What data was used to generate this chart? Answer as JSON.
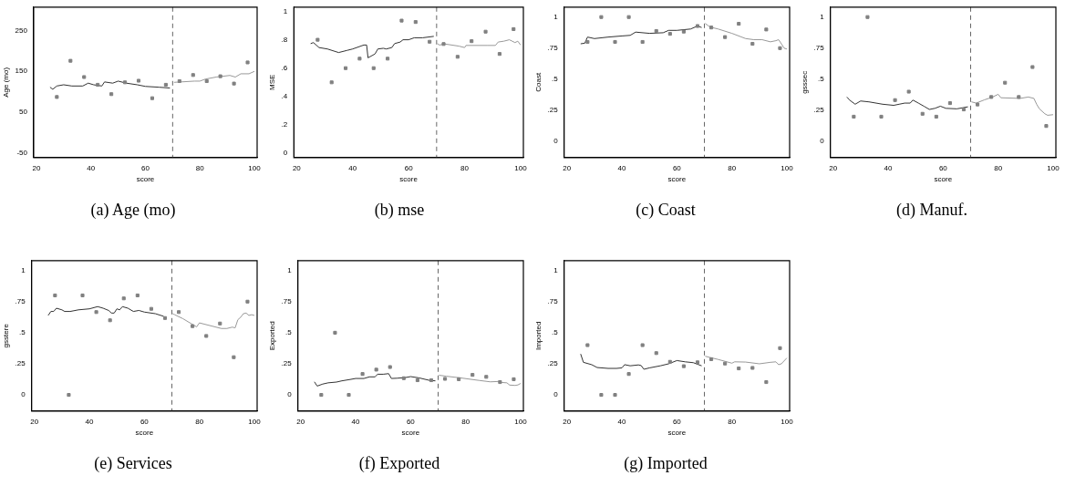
{
  "chart_data": [
    {
      "type": "scatter",
      "title": "(a) Age (mo)",
      "xlabel": "score",
      "ylabel": "Age (mo)",
      "xlim": [
        19,
        101
      ],
      "xticks": [
        20,
        40,
        60,
        80,
        100
      ],
      "ylim": [
        -62,
        308
      ],
      "yticks": [
        -50,
        50,
        150,
        250
      ],
      "marker": "square",
      "grid": false,
      "legend": false,
      "ref_lines": [
        {
          "axis": "x",
          "value": 70,
          "color": "#666666",
          "line_style": "dashed"
        }
      ],
      "series": [
        {
          "type": "scatter",
          "color": "#808080",
          "x": [
            27.5,
            32.5,
            37.5,
            42.5,
            47.5,
            52.5,
            57.5,
            62.5,
            67.5,
            72.5,
            77.5,
            82.5,
            87.5,
            92.5,
            97.5
          ],
          "values": [
            87,
            176,
            136,
            117,
            94,
            123,
            127,
            84,
            117,
            126,
            141,
            126,
            138,
            120,
            172
          ]
        },
        {
          "type": "line",
          "color": "#333333",
          "marker": "none",
          "line_style": "solid",
          "x": [
            25,
            26,
            27.5,
            30,
            33,
            37,
            39,
            41,
            44,
            45,
            48,
            50,
            53,
            57,
            60,
            65,
            69
          ],
          "values": [
            111,
            106,
            114,
            117,
            114,
            114,
            121,
            117,
            114,
            124,
            121,
            126,
            121,
            117,
            113,
            111,
            109
          ]
        },
        {
          "type": "line",
          "color": "#999999",
          "marker": "none",
          "line_style": "solid",
          "x": [
            70.5,
            73,
            78,
            80,
            82,
            86,
            91,
            93,
            95,
            98,
            100
          ],
          "values": [
            123,
            124,
            126,
            126,
            131,
            136,
            140,
            136,
            144,
            144,
            150
          ]
        }
      ]
    },
    {
      "type": "scatter",
      "title": "(b) mse",
      "xlabel": "score",
      "ylabel": "MSE",
      "xlim": [
        19,
        101
      ],
      "xticks": [
        20,
        40,
        60,
        80,
        100
      ],
      "ylim": [
        -0.03,
        1.03
      ],
      "yticks": [
        0,
        {
          "value": 0.2,
          "label": ".2"
        },
        {
          "value": 0.4,
          "label": ".4"
        },
        {
          "value": 0.6,
          "label": ".6"
        },
        {
          "value": 0.8,
          "label": ".8"
        },
        1
      ],
      "marker": "square",
      "grid": false,
      "legend": false,
      "ref_lines": [
        {
          "axis": "x",
          "value": 70,
          "color": "#666666",
          "line_style": "dashed"
        }
      ],
      "series": [
        {
          "type": "scatter",
          "color": "#808080",
          "x": [
            27.5,
            32.5,
            37.5,
            42.5,
            47.5,
            52.5,
            57.5,
            62.5,
            67.5,
            72.5,
            77.5,
            82.5,
            87.5,
            92.5,
            97.5
          ],
          "values": [
            0.8,
            0.5,
            0.6,
            0.667,
            0.6,
            0.667,
            0.935,
            0.925,
            0.786,
            0.77,
            0.68,
            0.79,
            0.857,
            0.7,
            0.875
          ]
        },
        {
          "type": "line",
          "color": "#333333",
          "marker": "none",
          "line_style": "solid",
          "x": [
            25,
            26,
            28,
            31,
            35,
            38,
            40,
            44,
            45,
            45.5,
            48,
            49,
            51,
            52,
            54,
            55,
            57,
            58,
            60,
            62,
            65,
            69
          ],
          "values": [
            0.773,
            0.78,
            0.745,
            0.735,
            0.71,
            0.725,
            0.735,
            0.763,
            0.763,
            0.673,
            0.7,
            0.735,
            0.74,
            0.735,
            0.745,
            0.773,
            0.784,
            0.8,
            0.8,
            0.814,
            0.814,
            0.824
          ]
        },
        {
          "type": "line",
          "color": "#999999",
          "marker": "none",
          "line_style": "solid",
          "x": [
            70.3,
            71,
            73,
            78,
            80,
            80.5,
            88,
            91,
            92,
            94,
            96,
            97,
            98,
            99,
            100
          ],
          "values": [
            0.773,
            0.763,
            0.77,
            0.755,
            0.745,
            0.76,
            0.76,
            0.76,
            0.784,
            0.79,
            0.8,
            0.79,
            0.78,
            0.79,
            0.763
          ]
        }
      ]
    },
    {
      "type": "scatter",
      "title": "(c) Coast",
      "xlabel": "score",
      "ylabel": "Coast",
      "xlim": [
        19,
        101
      ],
      "xticks": [
        20,
        40,
        60,
        80,
        100
      ],
      "ylim": [
        -0.13,
        1.08
      ],
      "yticks": [
        0,
        {
          "value": 0.25,
          "label": ".25"
        },
        {
          "value": 0.5,
          "label": ".5"
        },
        {
          "value": 0.75,
          "label": ".75"
        },
        1
      ],
      "marker": "square",
      "grid": false,
      "legend": false,
      "ref_lines": [
        {
          "axis": "x",
          "value": 70,
          "color": "#666666",
          "line_style": "dashed"
        }
      ],
      "series": [
        {
          "type": "scatter",
          "color": "#808080",
          "x": [
            27.5,
            32.5,
            37.5,
            42.5,
            47.5,
            52.5,
            57.5,
            62.5,
            67.5,
            72.5,
            77.5,
            82.5,
            87.5,
            92.5,
            97.5
          ],
          "values": [
            0.8,
            1,
            0.8,
            1,
            0.8,
            0.888,
            0.865,
            0.883,
            0.928,
            0.916,
            0.839,
            0.946,
            0.785,
            0.9,
            0.75
          ]
        },
        {
          "type": "line",
          "color": "#333333",
          "marker": "none",
          "line_style": "solid",
          "x": [
            25,
            26.5,
            27.5,
            30,
            35,
            40,
            43,
            45,
            50,
            55,
            57,
            60,
            65,
            67.5,
            69
          ],
          "values": [
            0.785,
            0.79,
            0.839,
            0.827,
            0.839,
            0.848,
            0.853,
            0.879,
            0.869,
            0.874,
            0.893,
            0.893,
            0.904,
            0.928,
            0.916
          ]
        },
        {
          "type": "line",
          "color": "#999999",
          "marker": "none",
          "line_style": "solid",
          "x": [
            70.3,
            72,
            75,
            80,
            85,
            88,
            91,
            94,
            96,
            97,
            98,
            99,
            100
          ],
          "values": [
            0.949,
            0.92,
            0.904,
            0.869,
            0.827,
            0.818,
            0.818,
            0.801,
            0.81,
            0.818,
            0.785,
            0.75,
            0.743
          ]
        }
      ]
    },
    {
      "type": "scatter",
      "title": "(d) Manuf.",
      "xlabel": "score",
      "ylabel": "gsssec",
      "xlim": [
        19,
        101
      ],
      "xticks": [
        20,
        40,
        60,
        80,
        100
      ],
      "ylim": [
        -0.13,
        1.08
      ],
      "yticks": [
        0,
        {
          "value": 0.25,
          "label": ".25"
        },
        {
          "value": 0.5,
          "label": ".5"
        },
        {
          "value": 0.75,
          "label": ".75"
        },
        1
      ],
      "marker": "square",
      "grid": false,
      "legend": false,
      "ref_lines": [
        {
          "axis": "x",
          "value": 70,
          "color": "#666666",
          "line_style": "dashed"
        }
      ],
      "series": [
        {
          "type": "scatter",
          "color": "#808080",
          "x": [
            27.5,
            32.5,
            37.5,
            42.5,
            47.5,
            52.5,
            57.5,
            62.5,
            67.5,
            72.5,
            77.5,
            82.5,
            87.5,
            92.5,
            97.5
          ],
          "values": [
            0.199,
            1,
            0.199,
            0.332,
            0.4,
            0.222,
            0.199,
            0.308,
            0.257,
            0.297,
            0.357,
            0.472,
            0.357,
            0.598,
            0.124
          ]
        },
        {
          "type": "line",
          "color": "#333333",
          "marker": "none",
          "line_style": "solid",
          "x": [
            25,
            26,
            28,
            30,
            33,
            38,
            42,
            44,
            46,
            48,
            49,
            51,
            53,
            55,
            57,
            59,
            61,
            65,
            69
          ],
          "values": [
            0.357,
            0.332,
            0.299,
            0.325,
            0.318,
            0.299,
            0.29,
            0.299,
            0.308,
            0.308,
            0.332,
            0.308,
            0.283,
            0.257,
            0.266,
            0.283,
            0.266,
            0.262,
            0.278
          ]
        },
        {
          "type": "line",
          "color": "#999999",
          "marker": "none",
          "line_style": "solid",
          "x": [
            70.3,
            72,
            75,
            78,
            80,
            81,
            88,
            91,
            93,
            94,
            95,
            97,
            98,
            100
          ],
          "values": [
            0.318,
            0.308,
            0.334,
            0.357,
            0.379,
            0.351,
            0.346,
            0.357,
            0.346,
            0.299,
            0.262,
            0.222,
            0.21,
            0.215
          ]
        }
      ]
    },
    {
      "type": "scatter",
      "title": "(e) Services",
      "xlabel": "score",
      "ylabel": "gsstere",
      "xlim": [
        19,
        101
      ],
      "xticks": [
        20,
        40,
        60,
        80,
        100
      ],
      "ylim": [
        -0.13,
        1.08
      ],
      "yticks": [
        0,
        {
          "value": 0.25,
          "label": ".25"
        },
        {
          "value": 0.5,
          "label": ".5"
        },
        {
          "value": 0.75,
          "label": ".75"
        },
        1
      ],
      "marker": "square",
      "grid": false,
      "legend": false,
      "ref_lines": [
        {
          "axis": "x",
          "value": 70,
          "color": "#666666",
          "line_style": "dashed"
        }
      ],
      "series": [
        {
          "type": "scatter",
          "color": "#808080",
          "x": [
            27.5,
            32.5,
            37.5,
            42.5,
            47.5,
            52.5,
            57.5,
            62.5,
            67.5,
            72.5,
            77.5,
            82.5,
            87.5,
            92.5,
            97.5
          ],
          "values": [
            0.8,
            0,
            0.8,
            0.666,
            0.6,
            0.776,
            0.8,
            0.692,
            0.618,
            0.666,
            0.553,
            0.474,
            0.574,
            0.303,
            0.75
          ]
        },
        {
          "type": "line",
          "color": "#333333",
          "marker": "none",
          "line_style": "solid",
          "x": [
            25,
            26,
            27,
            28,
            30,
            31,
            33,
            36,
            40,
            43,
            45,
            47,
            48,
            49,
            50,
            51,
            52,
            54,
            56,
            58,
            60,
            64,
            67
          ],
          "values": [
            0.639,
            0.671,
            0.671,
            0.697,
            0.684,
            0.671,
            0.671,
            0.684,
            0.692,
            0.71,
            0.697,
            0.679,
            0.658,
            0.658,
            0.692,
            0.684,
            0.71,
            0.697,
            0.671,
            0.679,
            0.666,
            0.653,
            0.632
          ]
        },
        {
          "type": "line",
          "color": "#999999",
          "marker": "none",
          "line_style": "solid",
          "x": [
            70.3,
            71,
            74,
            79,
            80,
            88,
            90,
            92,
            93,
            94,
            95,
            96,
            97,
            98,
            99,
            100
          ],
          "values": [
            0.653,
            0.645,
            0.613,
            0.547,
            0.579,
            0.534,
            0.534,
            0.545,
            0.539,
            0.605,
            0.624,
            0.653,
            0.658,
            0.639,
            0.645,
            0.639
          ]
        }
      ]
    },
    {
      "type": "scatter",
      "title": "(f) Exported",
      "xlabel": "score",
      "ylabel": "Exported",
      "xlim": [
        19,
        101
      ],
      "xticks": [
        20,
        40,
        60,
        80,
        100
      ],
      "ylim": [
        -0.13,
        1.08
      ],
      "yticks": [
        0,
        {
          "value": 0.25,
          "label": ".25"
        },
        {
          "value": 0.5,
          "label": ".5"
        },
        {
          "value": 0.75,
          "label": ".75"
        },
        1
      ],
      "marker": "square",
      "grid": false,
      "legend": false,
      "ref_lines": [
        {
          "axis": "x",
          "value": 70,
          "color": "#666666",
          "line_style": "dashed"
        }
      ],
      "series": [
        {
          "type": "scatter",
          "color": "#808080",
          "x": [
            27.5,
            32.5,
            37.5,
            42.5,
            47.5,
            52.5,
            57.5,
            62.5,
            67.5,
            72.5,
            77.5,
            82.5,
            87.5,
            92.5,
            97.5
          ],
          "values": [
            0,
            0.5,
            0,
            0.168,
            0.203,
            0.224,
            0.134,
            0.118,
            0.118,
            0.129,
            0.126,
            0.161,
            0.145,
            0.103,
            0.126
          ]
        },
        {
          "type": "line",
          "color": "#333333",
          "marker": "none",
          "line_style": "solid",
          "x": [
            25,
            26,
            28,
            30,
            33,
            35,
            38,
            40,
            43,
            45,
            47,
            48,
            50,
            52,
            53,
            55,
            58,
            60,
            63,
            67,
            69
          ],
          "values": [
            0.105,
            0.071,
            0.087,
            0.097,
            0.103,
            0.113,
            0.124,
            0.132,
            0.132,
            0.145,
            0.145,
            0.166,
            0.166,
            0.171,
            0.132,
            0.134,
            0.139,
            0.147,
            0.137,
            0.116,
            0.113
          ]
        },
        {
          "type": "line",
          "color": "#999999",
          "marker": "none",
          "line_style": "solid",
          "x": [
            70.3,
            73,
            78,
            85,
            89,
            92,
            93,
            95,
            96,
            98,
            99,
            100
          ],
          "values": [
            0.158,
            0.15,
            0.137,
            0.116,
            0.105,
            0.108,
            0.1,
            0.097,
            0.079,
            0.076,
            0.08,
            0.092
          ]
        }
      ]
    },
    {
      "type": "scatter",
      "title": "(g) Imported",
      "xlabel": "score",
      "ylabel": "Imported",
      "xlim": [
        19,
        101
      ],
      "xticks": [
        20,
        40,
        60,
        80,
        100
      ],
      "ylim": [
        -0.13,
        1.08
      ],
      "yticks": [
        0,
        {
          "value": 0.25,
          "label": ".25"
        },
        {
          "value": 0.5,
          "label": ".5"
        },
        {
          "value": 0.75,
          "label": ".75"
        },
        1
      ],
      "marker": "square",
      "grid": false,
      "legend": false,
      "ref_lines": [
        {
          "axis": "x",
          "value": 70,
          "color": "#666666",
          "line_style": "dashed"
        }
      ],
      "series": [
        {
          "type": "scatter",
          "color": "#808080",
          "x": [
            27.5,
            32.5,
            37.5,
            42.5,
            47.5,
            52.5,
            57.5,
            62.5,
            67.5,
            72.5,
            77.5,
            82.5,
            87.5,
            92.5,
            97.5
          ],
          "values": [
            0.4,
            0,
            0,
            0.168,
            0.4,
            0.336,
            0.266,
            0.231,
            0.262,
            0.287,
            0.252,
            0.213,
            0.217,
            0.103,
            0.376
          ]
        },
        {
          "type": "line",
          "color": "#333333",
          "marker": "none",
          "line_style": "solid",
          "x": [
            25,
            26,
            29,
            31,
            35,
            38,
            40,
            41,
            43,
            46,
            47,
            48,
            50,
            54,
            57,
            60,
            63,
            66,
            69
          ],
          "values": [
            0.329,
            0.262,
            0.243,
            0.22,
            0.213,
            0.213,
            0.217,
            0.243,
            0.234,
            0.241,
            0.236,
            0.206,
            0.217,
            0.234,
            0.25,
            0.276,
            0.266,
            0.259,
            0.234
          ]
        },
        {
          "type": "line",
          "color": "#999999",
          "marker": "none",
          "line_style": "solid",
          "x": [
            70.3,
            72,
            75,
            80,
            81,
            85,
            90,
            94,
            96,
            97,
            98,
            100
          ],
          "values": [
            0.311,
            0.301,
            0.285,
            0.255,
            0.266,
            0.264,
            0.25,
            0.262,
            0.266,
            0.243,
            0.25,
            0.297
          ]
        }
      ]
    }
  ]
}
